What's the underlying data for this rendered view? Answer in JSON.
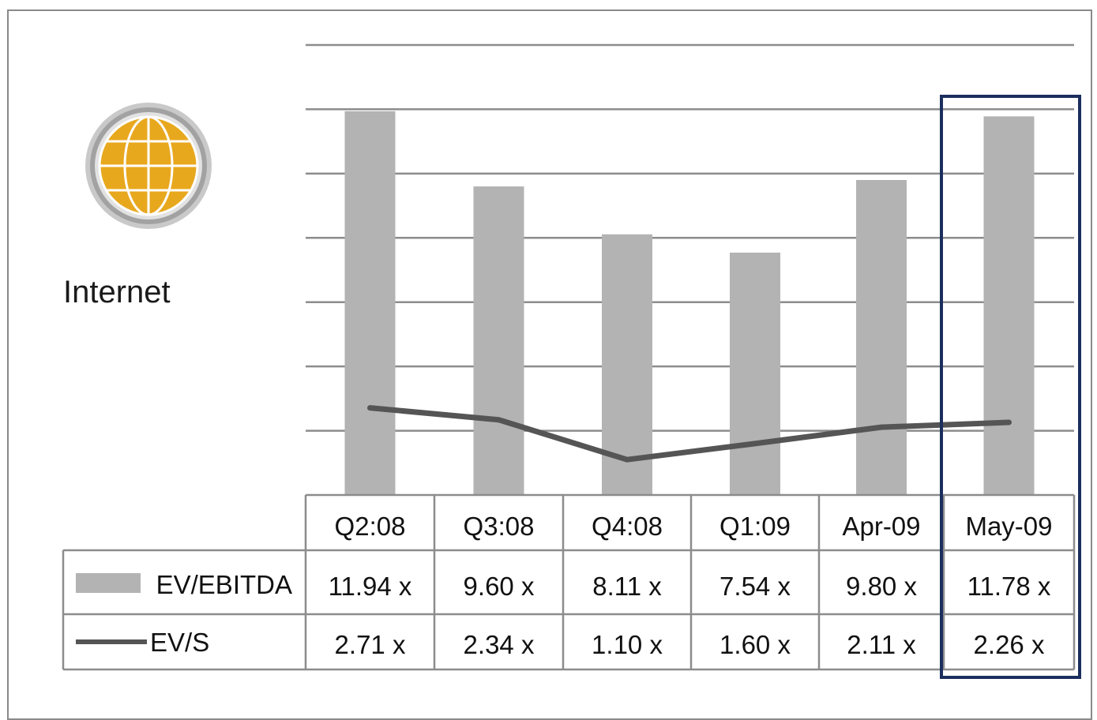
{
  "sector": {
    "label": "Internet",
    "icon": "globe-icon",
    "icon_color": "#E8A81E"
  },
  "chart_data": {
    "type": "bar",
    "categories": [
      "Q2:08",
      "Q3:08",
      "Q4:08",
      "Q1:09",
      "Apr-09",
      "May-09"
    ],
    "series": [
      {
        "name": "EV/EBITDA",
        "type": "bar",
        "values": [
          11.94,
          9.6,
          8.11,
          7.54,
          9.8,
          11.78
        ],
        "labels": [
          "11.94 x",
          "9.60 x",
          "8.11 x",
          "7.54 x",
          "9.80 x",
          "11.78 x"
        ],
        "color": "#B3B3B3"
      },
      {
        "name": "EV/S",
        "type": "line",
        "values": [
          2.71,
          2.34,
          1.1,
          1.6,
          2.11,
          2.26
        ],
        "labels": [
          "2.71 x",
          "2.34 x",
          "1.10 x",
          "1.60 x",
          "2.11 x",
          "2.26 x"
        ],
        "color": "#555555"
      }
    ],
    "ylim": [
      0,
      14
    ],
    "grid": true,
    "highlight_category": "May-09",
    "highlight_color": "#1B2F5E",
    "legend": "data-table"
  }
}
